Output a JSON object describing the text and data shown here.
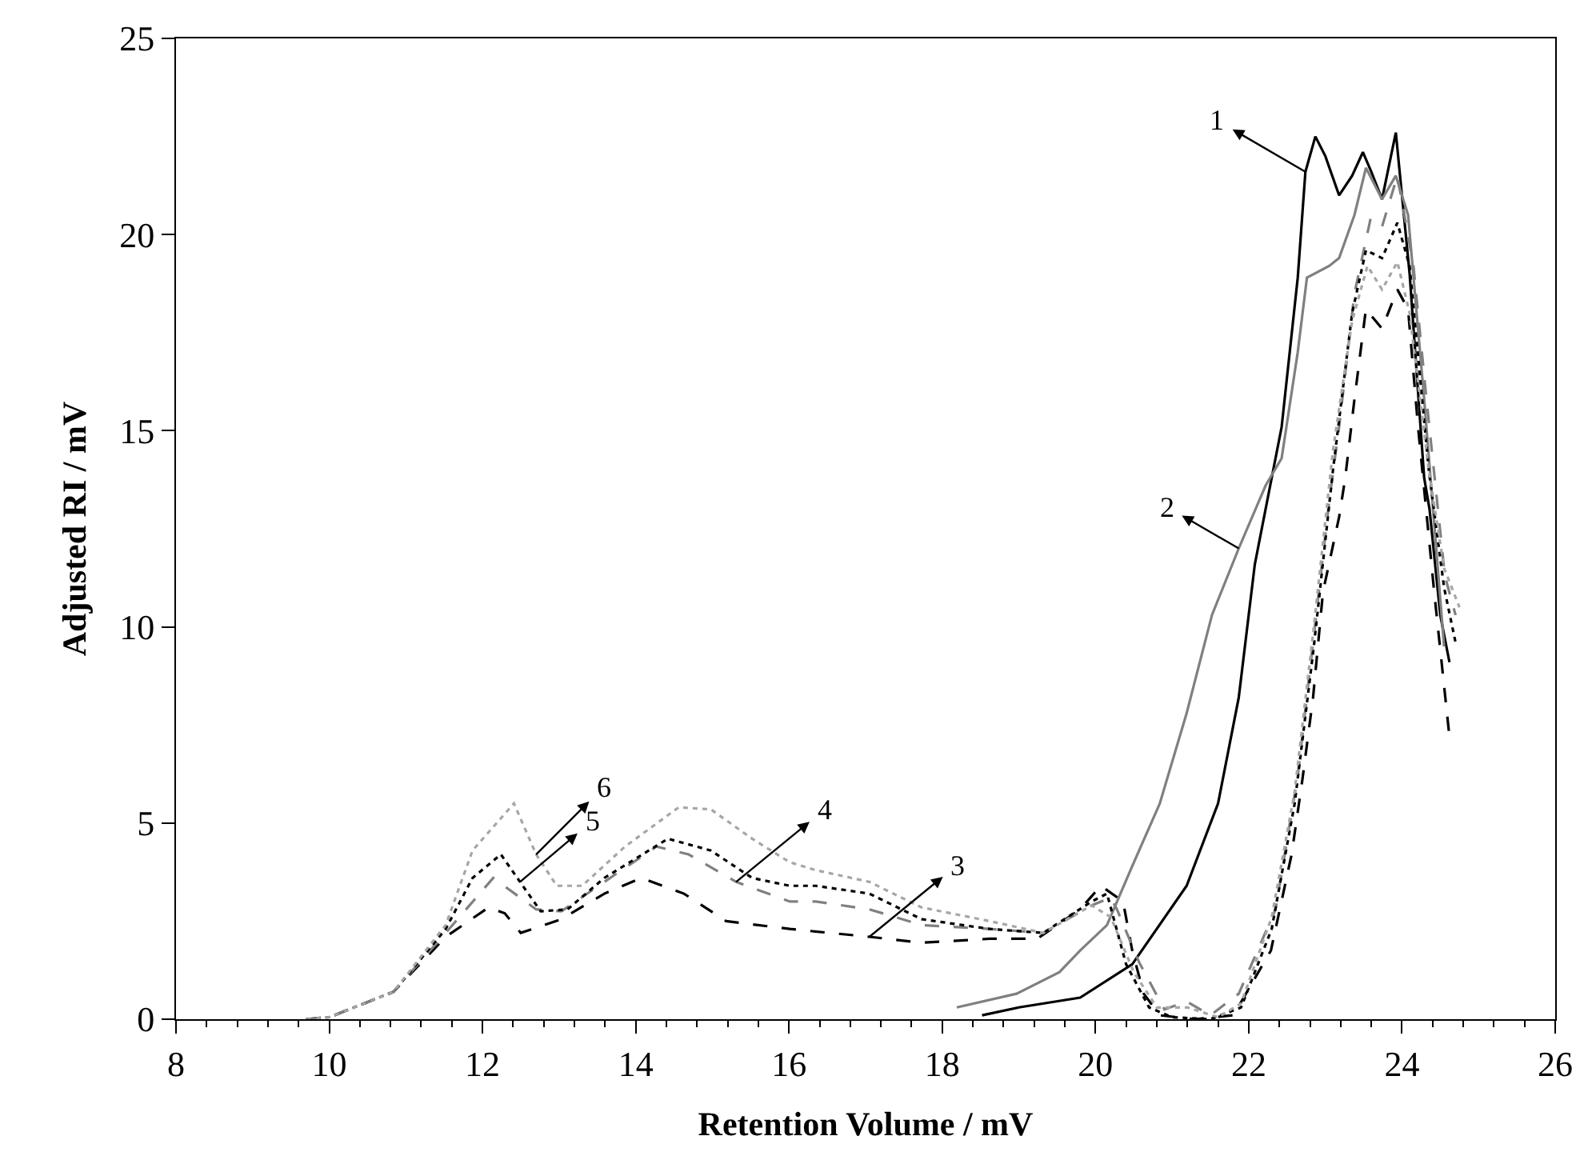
{
  "chart_data": {
    "type": "line",
    "xlabel": "Retention Volume / mV",
    "ylabel": "Adjusted RI / mV",
    "xlim": [
      8,
      26
    ],
    "xticks": [
      8,
      10,
      12,
      14,
      16,
      18,
      20,
      22,
      24,
      26
    ],
    "ylim": [
      0,
      25
    ],
    "yticks": [
      0,
      5,
      10,
      15,
      20,
      25
    ],
    "grid": false,
    "marker": "none",
    "series": [
      {
        "color": "#000000",
        "line_style": "solid",
        "x": [
          18.52,
          19.0,
          19.8,
          20.48,
          21.19,
          21.6,
          21.87,
          22.08,
          22.43,
          22.64,
          22.74,
          22.87,
          23.0,
          23.18,
          23.35,
          23.49,
          23.6,
          23.74,
          23.92,
          24.1,
          24.29,
          24.36,
          24.5,
          24.62
        ],
        "values": [
          0.1,
          0.3,
          0.55,
          1.4,
          3.4,
          5.5,
          8.2,
          11.6,
          15.1,
          18.9,
          21.6,
          22.5,
          22.0,
          21.0,
          21.5,
          22.1,
          21.6,
          20.9,
          22.6,
          19.0,
          13.8,
          13.0,
          10.3,
          9.1
        ]
      },
      {
        "color": "#808080",
        "line_style": "solid",
        "x": [
          18.19,
          18.97,
          19.53,
          19.8,
          20.15,
          20.48,
          20.84,
          21.19,
          21.52,
          21.87,
          22.22,
          22.43,
          22.64,
          22.76,
          23.05,
          23.18,
          23.38,
          23.53,
          23.74,
          23.92,
          24.08,
          24.29,
          24.55
        ],
        "values": [
          0.3,
          0.65,
          1.2,
          1.75,
          2.4,
          3.9,
          5.5,
          7.8,
          10.3,
          12.0,
          13.6,
          14.3,
          17.0,
          18.9,
          19.2,
          19.4,
          20.5,
          21.7,
          20.9,
          21.5,
          20.5,
          15.8,
          9.5
        ]
      },
      {
        "color": "#000000",
        "line_style": "dashed",
        "x": [
          9.7,
          10.0,
          10.84,
          11.52,
          12.08,
          12.29,
          12.5,
          13.03,
          13.59,
          14.07,
          14.63,
          15.18,
          16.01,
          17.05,
          17.73,
          18.62,
          19.24,
          19.8,
          20.07,
          20.36,
          20.48,
          20.63,
          20.84,
          21.3,
          21.8,
          22.29,
          22.56,
          22.7,
          22.84,
          22.97,
          23.18,
          23.26,
          23.38,
          23.53,
          23.74,
          23.94,
          24.08,
          24.21,
          24.42,
          24.62
        ],
        "values": [
          0,
          0.05,
          0.7,
          2.1,
          2.85,
          2.7,
          2.2,
          2.55,
          3.2,
          3.6,
          3.2,
          2.5,
          2.3,
          2.1,
          1.95,
          2.05,
          2.05,
          2.8,
          3.4,
          3.0,
          1.75,
          0.65,
          0.1,
          0,
          0.1,
          1.75,
          4.2,
          6.1,
          8.2,
          10.9,
          12.8,
          13.8,
          15.8,
          18.1,
          17.6,
          18.6,
          18.1,
          15.1,
          10.9,
          7.2
        ]
      },
      {
        "color": "#808080",
        "line_style": "dashed",
        "x": [
          9.7,
          10.0,
          10.84,
          11.52,
          12.14,
          12.7,
          13.03,
          13.59,
          14.27,
          14.69,
          15.31,
          16.01,
          16.35,
          17.05,
          17.73,
          18.62,
          19.32,
          19.95,
          20.2,
          20.28,
          20.57,
          20.9,
          21.19,
          21.5,
          21.87,
          22.35,
          22.64,
          22.84,
          23.05,
          23.18,
          23.38,
          23.59,
          23.74,
          23.94,
          24.15,
          24.32,
          24.56,
          24.7
        ],
        "values": [
          0,
          0.05,
          0.7,
          2.2,
          3.6,
          2.8,
          2.75,
          3.5,
          4.4,
          4.2,
          3.5,
          3.0,
          3.0,
          2.8,
          2.4,
          2.3,
          2.2,
          2.9,
          3.1,
          2.8,
          1.45,
          0.25,
          0.45,
          0.1,
          0.65,
          2.8,
          6.2,
          9.6,
          13.2,
          15.1,
          18.5,
          20.4,
          20.2,
          21.5,
          19.2,
          15.8,
          11.3,
          10.3
        ]
      },
      {
        "color": "#000000",
        "line_style": "dotted",
        "x": [
          9.7,
          10.0,
          10.84,
          11.52,
          11.87,
          12.24,
          12.49,
          12.76,
          13.11,
          13.59,
          14.42,
          14.98,
          15.52,
          16.01,
          16.35,
          17.05,
          17.73,
          18.62,
          19.32,
          19.95,
          20.15,
          20.4,
          20.7,
          21.0,
          21.5,
          21.9,
          22.3,
          22.6,
          22.85,
          23.1,
          23.35,
          23.53,
          23.74,
          23.94,
          24.1,
          24.35,
          24.55,
          24.7
        ],
        "values": [
          0,
          0.05,
          0.7,
          2.3,
          3.6,
          4.2,
          3.5,
          2.75,
          2.8,
          3.6,
          4.6,
          4.3,
          3.6,
          3.4,
          3.4,
          3.2,
          2.55,
          2.3,
          2.2,
          3.0,
          3.2,
          1.4,
          0.3,
          0.05,
          0,
          0.3,
          2.3,
          5.5,
          9.5,
          14.0,
          18.0,
          19.6,
          19.4,
          20.3,
          19.2,
          14.0,
          11.0,
          9.6
        ]
      },
      {
        "color": "#a6a6a6",
        "line_style": "dotted",
        "x": [
          9.7,
          10.0,
          10.84,
          11.52,
          11.87,
          12.41,
          12.7,
          12.97,
          13.3,
          13.86,
          14.56,
          14.98,
          15.52,
          16.01,
          16.35,
          17.05,
          17.73,
          18.62,
          19.32,
          19.95,
          20.2,
          20.5,
          20.8,
          21.2,
          21.6,
          21.9,
          22.3,
          22.6,
          22.85,
          23.1,
          23.35,
          23.55,
          23.74,
          23.94,
          24.1,
          24.35,
          24.55,
          24.75
        ],
        "values": [
          0,
          0.05,
          0.7,
          2.4,
          4.3,
          5.5,
          4.2,
          3.4,
          3.4,
          4.4,
          5.4,
          5.35,
          4.6,
          4.0,
          3.8,
          3.5,
          2.85,
          2.5,
          2.2,
          2.9,
          2.6,
          1.2,
          0.3,
          0.3,
          0.05,
          0.4,
          2.6,
          5.8,
          10.0,
          14.5,
          17.8,
          19.2,
          18.6,
          19.3,
          18.0,
          14.0,
          11.5,
          10.5
        ]
      }
    ],
    "annotations": [
      {
        "text": "1",
        "x": 22.74,
        "y": 21.6
      },
      {
        "text": "2",
        "x": 21.87,
        "y": 12.0
      },
      {
        "text": "3",
        "x": 17.05,
        "y": 2.1
      },
      {
        "text": "4",
        "x": 15.31,
        "y": 3.5
      },
      {
        "text": "5",
        "x": 12.49,
        "y": 3.5
      },
      {
        "text": "6",
        "x": 12.7,
        "y": 4.2
      }
    ]
  }
}
